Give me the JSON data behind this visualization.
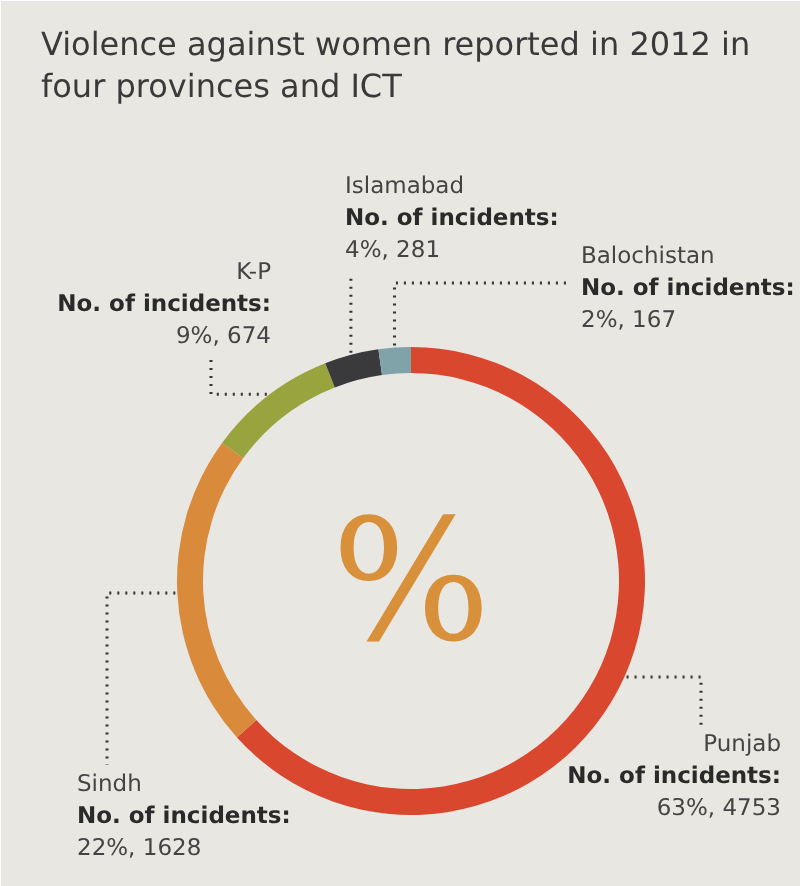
{
  "chart_data": {
    "type": "donut",
    "title": "Violence against women reported in 2012 in four provinces and ICT",
    "categories": [
      "Punjab",
      "Sindh",
      "K-P",
      "Islamabad",
      "Balochistan"
    ],
    "values": [
      4753,
      1628,
      674,
      281,
      167
    ],
    "colors": [
      "#d9472f",
      "#d98a3a",
      "#9aa43e",
      "#3a3a3c",
      "#7fa3a8"
    ],
    "value_labels": [
      "No. of incidents:\n63%, 4753",
      "No. of incidents:\n22%, 1628",
      "No. of incidents:\n9%, 674",
      "No. of incidents:\n4%, 281",
      "No. of incidents:\n2%, 167"
    ],
    "annotations": [
      "%"
    ]
  }
}
